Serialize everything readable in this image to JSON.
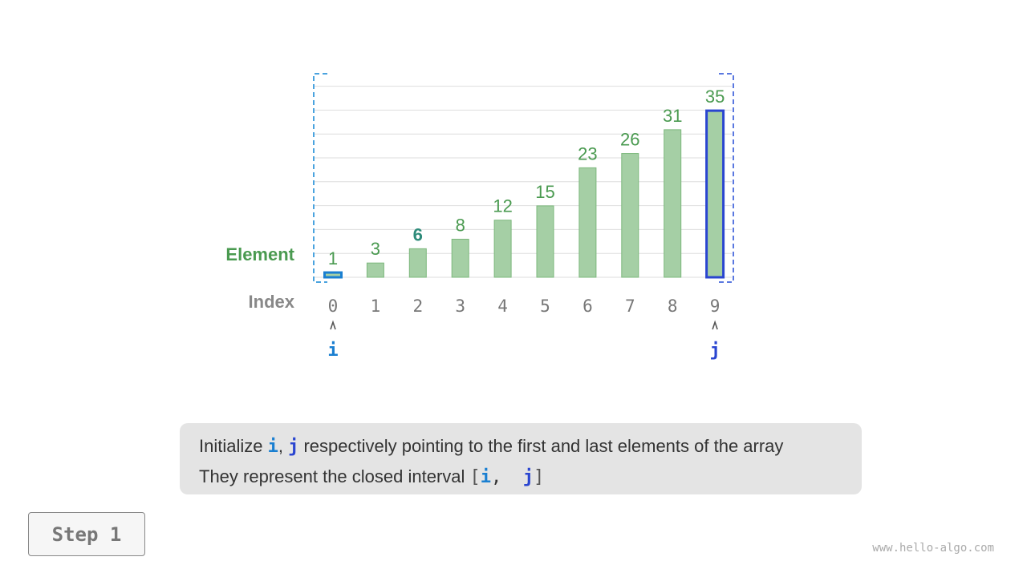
{
  "labels": {
    "element": "Element",
    "index": "Index"
  },
  "array": [
    1,
    3,
    6,
    8,
    12,
    15,
    23,
    26,
    31,
    35
  ],
  "indices": [
    "0",
    "1",
    "2",
    "3",
    "4",
    "5",
    "6",
    "7",
    "8",
    "9"
  ],
  "pointers": {
    "i": {
      "label": "i",
      "index": 0,
      "color": "#1a7fd1"
    },
    "j": {
      "label": "j",
      "index": 9,
      "color": "#2a45d0"
    }
  },
  "highlight_value_index": 2,
  "colors": {
    "bar": "#a5cfa5",
    "bar_stroke": "#7cb87c",
    "value_text": "#4a9a50",
    "highlight_text": "#2e8b7a",
    "index_text": "#777777"
  },
  "caption": {
    "line1": {
      "pre": "Initialize ",
      "i": "i",
      "sep": ", ",
      "j": "j",
      "post": " respectively pointing to the first and last elements of the array"
    },
    "line2": {
      "pre": "They represent the closed interval ",
      "open": "[",
      "i": "i",
      "sep": ",  ",
      "j": "j",
      "close": "]"
    }
  },
  "step": "Step 1",
  "watermark": "www.hello-algo.com"
}
